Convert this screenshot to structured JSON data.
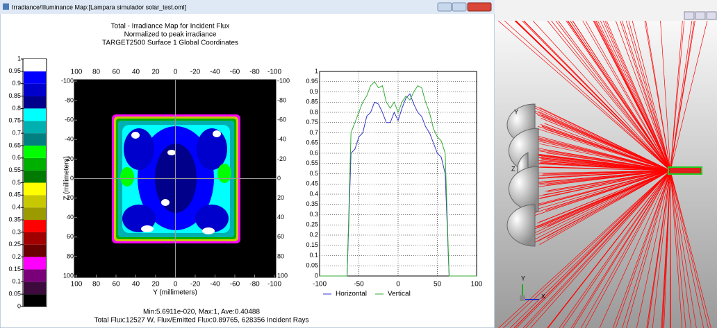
{
  "window": {
    "title": "Irradiance/Illuminance Map:[Lampara simulador solar_test.oml]"
  },
  "header": {
    "lines": [
      "Total - Irradiance Map for Incident Flux",
      "Normalized to peak irradiance",
      "TARGET2500 Surface 1    Global Coordinates"
    ]
  },
  "colorbar": {
    "ylim": [
      0,
      1
    ],
    "ticks": [
      0,
      0.05,
      0.1,
      0.15,
      0.2,
      0.25,
      0.3,
      0.35,
      0.4,
      0.45,
      0.5,
      0.55,
      0.6,
      0.65,
      0.7,
      0.75,
      0.8,
      0.85,
      0.9,
      0.95,
      1
    ],
    "colors": [
      "#000000",
      "#3d0a3d",
      "#7a007a",
      "#ff00ff",
      "#6b0000",
      "#a00000",
      "#ff0000",
      "#9b9b00",
      "#c8c800",
      "#ffff00",
      "#007a00",
      "#00b000",
      "#00ff00",
      "#008080",
      "#00b0b0",
      "#00ffff",
      "#00008b",
      "#0000cd",
      "#0000ff",
      "#ffffff"
    ]
  },
  "map": {
    "xlabel": "Y (millimeters)",
    "ylabel": "Z (millimeters)",
    "xlim": [
      100,
      -100
    ],
    "ylim": [
      -100,
      100
    ],
    "xticks": [
      100,
      80,
      60,
      40,
      20,
      0,
      -20,
      -40,
      -60,
      -80,
      -100
    ],
    "yticks": [
      -100,
      -80,
      -60,
      -40,
      -20,
      0,
      20,
      40,
      60,
      80,
      100
    ]
  },
  "chart_data": {
    "type": "line",
    "x": [
      -100,
      -95,
      -90,
      -85,
      -80,
      -75,
      -70,
      -65,
      -60,
      -55,
      -50,
      -45,
      -40,
      -35,
      -30,
      -25,
      -20,
      -15,
      -10,
      -5,
      0,
      5,
      10,
      15,
      20,
      25,
      30,
      35,
      40,
      45,
      50,
      55,
      60,
      65,
      70,
      75,
      80,
      85,
      90,
      95,
      100
    ],
    "series": [
      {
        "name": "Horizontal",
        "color": "#3333cc",
        "values": [
          0,
          0,
          0,
          0,
          0,
          0,
          0,
          0,
          0.6,
          0.62,
          0.68,
          0.7,
          0.78,
          0.8,
          0.85,
          0.84,
          0.8,
          0.75,
          0.75,
          0.8,
          0.76,
          0.82,
          0.87,
          0.89,
          0.84,
          0.8,
          0.78,
          0.73,
          0.7,
          0.65,
          0.6,
          0.58,
          0.5,
          0,
          0,
          0,
          0,
          0,
          0,
          0,
          0
        ]
      },
      {
        "name": "Vertical",
        "color": "#33aa33",
        "values": [
          0,
          0,
          0,
          0,
          0,
          0,
          0,
          0,
          0.7,
          0.75,
          0.8,
          0.85,
          0.88,
          0.93,
          0.95,
          0.92,
          0.93,
          0.85,
          0.82,
          0.85,
          0.8,
          0.85,
          0.88,
          0.86,
          0.9,
          0.93,
          0.92,
          0.85,
          0.8,
          0.72,
          0.68,
          0.66,
          0.6,
          0,
          0,
          0,
          0,
          0,
          0,
          0,
          0
        ]
      }
    ],
    "xlim": [
      -100,
      100
    ],
    "ylim": [
      0,
      1
    ],
    "xticks": [
      -100,
      -50,
      0,
      50,
      100
    ],
    "yticks": [
      0,
      0.05,
      0.1,
      0.15,
      0.2,
      0.25,
      0.3,
      0.35,
      0.4,
      0.45,
      0.5,
      0.55,
      0.6,
      0.65,
      0.7,
      0.75,
      0.8,
      0.85,
      0.9,
      0.95,
      1
    ],
    "grid": true
  },
  "footer": {
    "lines": [
      "Min:5.6911e-020, Max:1, Ave:0.40488",
      "Total Flux:12527 W, Flux/Emitted Flux:0.89765, 628356 Incident Rays"
    ]
  },
  "view3d": {
    "sphere_labels": [
      "Y",
      "Z"
    ],
    "triad_labels": [
      "Y",
      "X"
    ]
  }
}
